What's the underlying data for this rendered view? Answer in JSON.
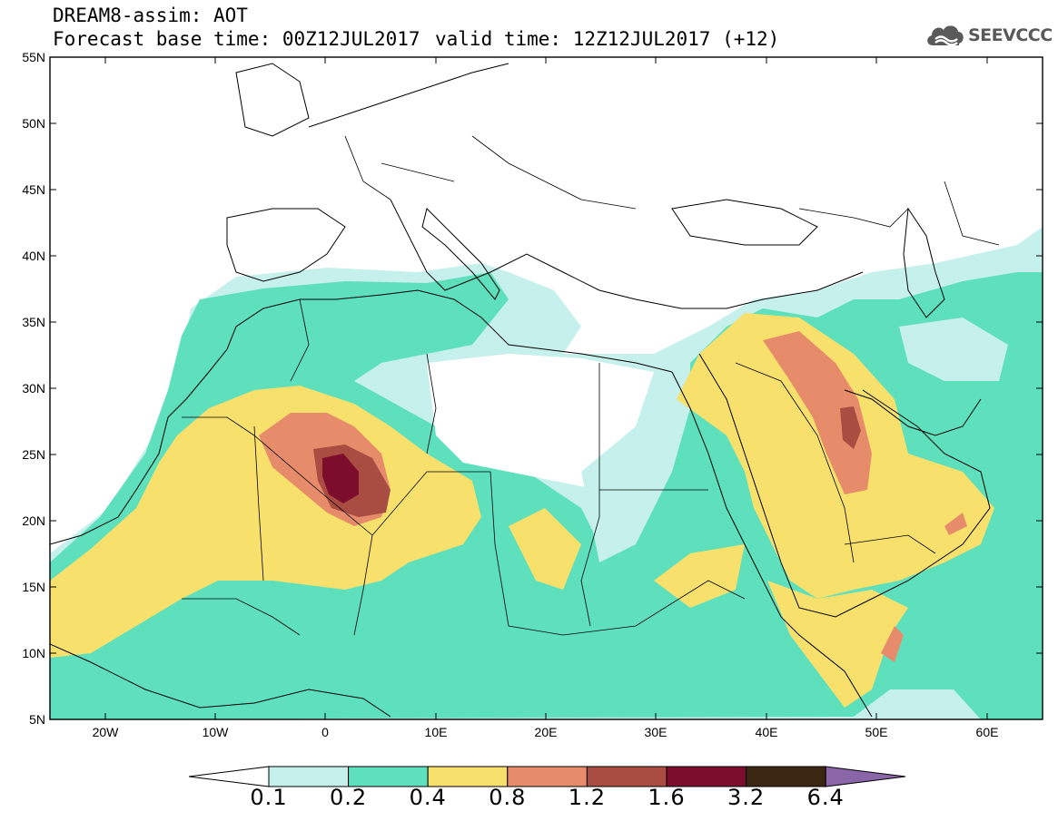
{
  "header": {
    "line1": "DREAM8-assim: AOT",
    "line2": "Forecast base time: 00Z12JUL2017",
    "valid": "valid time: 12Z12JUL2017 (+12)"
  },
  "logo": {
    "text": "SEEVCCC",
    "icon": "cloud-icon",
    "color": "#5a5a5a"
  },
  "map": {
    "lon_range": [
      -25,
      65
    ],
    "lat_range": [
      5,
      55
    ],
    "lat_labels": [
      "55N",
      "50N",
      "45N",
      "40N",
      "35N",
      "30N",
      "25N",
      "20N",
      "15N",
      "10N",
      "5N"
    ],
    "lon_labels": [
      "20W",
      "10W",
      "0",
      "10E",
      "20E",
      "30E",
      "40E",
      "50E",
      "60E"
    ],
    "variable": "AOT"
  },
  "colorbar": {
    "labels": [
      "0.1",
      "0.2",
      "0.4",
      "0.8",
      "1.2",
      "1.6",
      "3.2",
      "6.4"
    ],
    "colors": [
      "#ffffff",
      "#c6f0ec",
      "#5ee0bd",
      "#f7e06c",
      "#e78c6b",
      "#a94d43",
      "#7d0d2c",
      "#3c2614",
      "#8a66a9"
    ]
  }
}
